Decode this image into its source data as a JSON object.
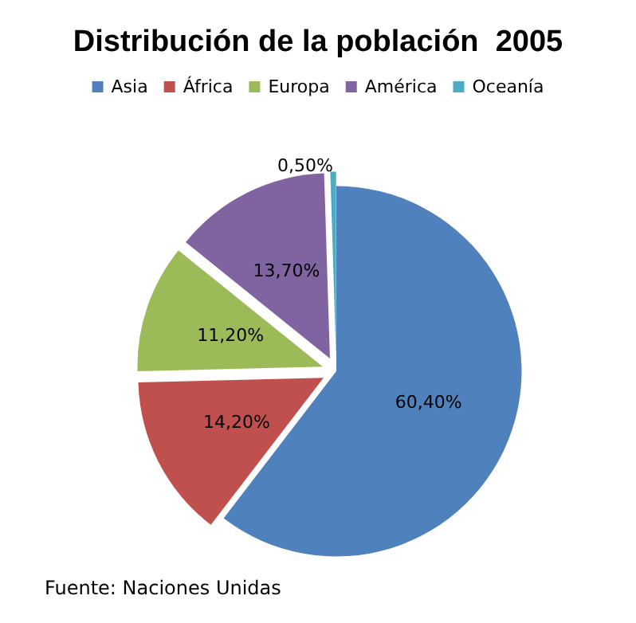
{
  "chart_data": {
    "type": "pie",
    "title": "Distribución de la población  2005",
    "categories": [
      "Asia",
      "África",
      "Europa",
      "América",
      "Oceanía"
    ],
    "values": [
      60.4,
      14.2,
      11.2,
      13.7,
      0.5
    ],
    "value_labels": [
      "60,40%",
      "14,20%",
      "11,20%",
      "13,70%",
      "0,50%"
    ],
    "colors": [
      "#4f81bd",
      "#c0504d",
      "#9bbb59",
      "#8064a2",
      "#4bacc6"
    ],
    "legend": "top",
    "annotations": [
      "Fuente: Naciones Unidas"
    ]
  }
}
